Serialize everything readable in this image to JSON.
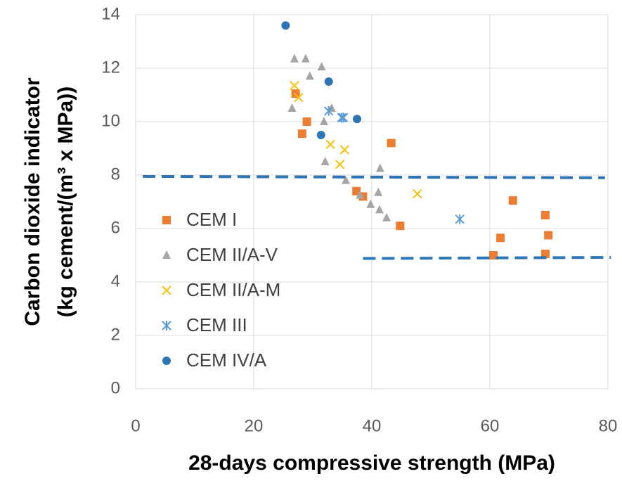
{
  "chart_data": {
    "type": "scatter",
    "x_label": "28-days compressive strength (MPa)",
    "y_label": [
      "Carbon dioxide indicator",
      "(kg cement/(m³ x MPa))"
    ],
    "xlim": [
      0,
      80
    ],
    "xticks": [
      0,
      20,
      40,
      60,
      80
    ],
    "ylim": [
      0,
      14
    ],
    "yticks": [
      0,
      2,
      4,
      6,
      8,
      10,
      12,
      14
    ],
    "grid": true,
    "legend": "left",
    "series": [
      {
        "name": "CEM I",
        "color": "#ED7D31",
        "marker": "square",
        "x": [
          27.1,
          29.0,
          28.2,
          43.3,
          37.4,
          38.5,
          44.8,
          63.9,
          69.4,
          69.9,
          61.8,
          60.6,
          69.4
        ],
        "values": [
          11.05,
          10.0,
          9.55,
          9.2,
          7.4,
          7.2,
          6.1,
          7.05,
          6.5,
          5.75,
          5.65,
          5.0,
          5.05
        ]
      },
      {
        "name": "CEM II/A-V",
        "color": "#A5A5A5",
        "marker": "triangle",
        "x": [
          26.9,
          28.8,
          31.5,
          29.5,
          26.5,
          31.9,
          32.1,
          33.2,
          41.4,
          35.6,
          38.0,
          39.8,
          41.1,
          41.3,
          42.5
        ],
        "values": [
          12.35,
          12.35,
          12.05,
          11.7,
          10.5,
          10.0,
          8.5,
          10.5,
          8.25,
          7.8,
          7.25,
          6.9,
          7.35,
          6.7,
          6.4
        ]
      },
      {
        "name": "CEM II/A-M",
        "color": "#FFC000",
        "marker": "x",
        "x": [
          26.9,
          27.6,
          33.0,
          35.4,
          34.6,
          47.7
        ],
        "values": [
          11.35,
          10.9,
          9.15,
          8.95,
          8.4,
          7.3
        ]
      },
      {
        "name": "CEM III",
        "color": "#5B9BD5",
        "marker": "asterisk",
        "x": [
          32.7,
          34.9,
          35.2,
          54.9
        ],
        "values": [
          10.4,
          10.15,
          10.15,
          6.35
        ]
      },
      {
        "name": "CEM IV/A",
        "color": "#2E75B6",
        "marker": "circle",
        "x": [
          25.4,
          32.7,
          37.5,
          31.4
        ],
        "values": [
          13.6,
          11.5,
          10.1,
          9.5
        ]
      }
    ],
    "dashed_lines": [
      {
        "color": "#2E75B6",
        "x": [
          1.2,
          79.5
        ],
        "y": [
          7.95,
          7.9
        ]
      },
      {
        "color": "#2E75B6",
        "x": [
          38.5,
          80.5
        ],
        "y": [
          4.88,
          4.92
        ]
      }
    ]
  }
}
